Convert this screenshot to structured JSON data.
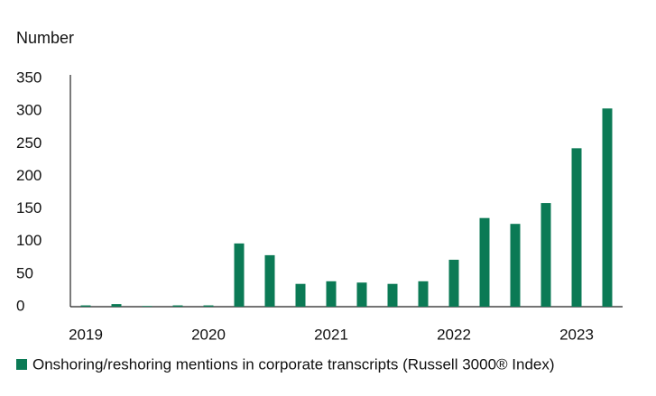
{
  "chart_data": {
    "type": "bar",
    "y_label": "Number",
    "categories": [
      "2019",
      null,
      null,
      null,
      "2020",
      null,
      null,
      null,
      "2021",
      null,
      null,
      null,
      "2022",
      null,
      null,
      null,
      "2023",
      null
    ],
    "series": [
      {
        "name": "Onshoring/reshoring mentions in corporate transcripts (Russell 3000® Index)",
        "color": "#0b7a55",
        "values": [
          2,
          4,
          1,
          2,
          2,
          97,
          79,
          35,
          39,
          37,
          35,
          39,
          72,
          136,
          127,
          159,
          243,
          304
        ]
      }
    ],
    "ylim": [
      0,
      350
    ],
    "yticks": [
      0,
      50,
      100,
      150,
      200,
      250,
      300,
      350
    ],
    "grid": false
  }
}
